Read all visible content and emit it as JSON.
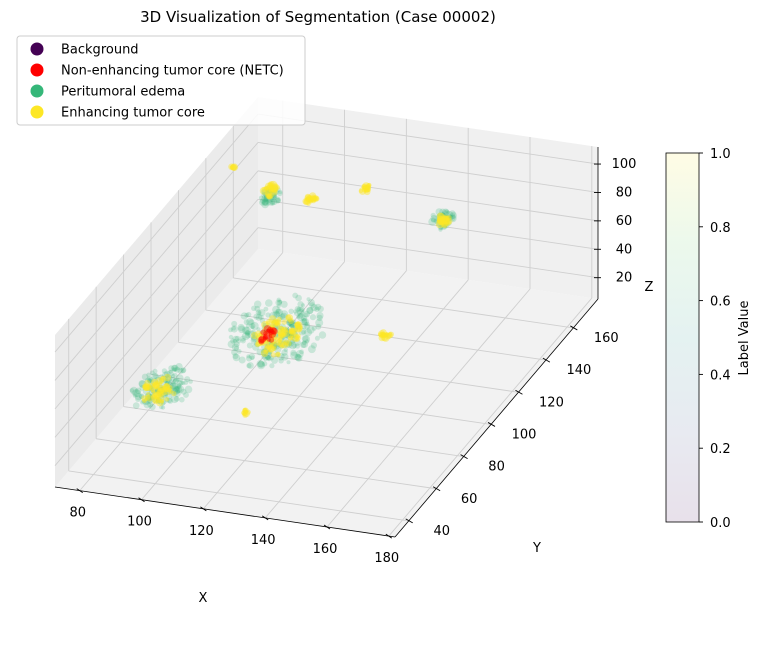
{
  "chart_data": {
    "type": "scatter",
    "projection": "3d",
    "title": "3D Visualization of Segmentation (Case 00002)",
    "xlabel": "X",
    "ylabel": "Y",
    "zlabel": "Z",
    "xlim": [
      72,
      182
    ],
    "ylim": [
      30,
      178
    ],
    "zlim": [
      5,
      112
    ],
    "x_ticks": [
      80,
      100,
      120,
      140,
      160,
      180
    ],
    "y_ticks": [
      40,
      60,
      80,
      100,
      120,
      140,
      160
    ],
    "z_ticks": [
      20,
      40,
      60,
      80,
      100
    ],
    "grid": true,
    "legend": {
      "placement": "upper-left",
      "entries": [
        {
          "label": "Background",
          "color": "#440154"
        },
        {
          "label": "Non-enhancing tumor core (NETC)",
          "color": "#ff0000"
        },
        {
          "label": "Peritumoral edema",
          "color": "#35b779"
        },
        {
          "label": "Enhancing tumor core",
          "color": "#fde725"
        }
      ]
    },
    "colorbar": {
      "label": "Label Value",
      "range": [
        0.0,
        1.0
      ],
      "ticks": [
        "0.0",
        "0.2",
        "0.4",
        "0.6",
        "0.8",
        "1.0"
      ],
      "colormap": "viridis",
      "alpha": 0.12
    },
    "clusters": [
      {
        "class": "Peritumoral edema",
        "center": [
          92,
          62,
          45
        ],
        "radius": [
          9,
          12,
          9
        ],
        "density": 140
      },
      {
        "class": "Enhancing tumor core",
        "center": [
          92,
          60,
          45
        ],
        "radius": [
          5,
          7,
          6
        ],
        "density": 60
      },
      {
        "class": "Peritumoral edema",
        "center": [
          110,
          106,
          40
        ],
        "radius": [
          14,
          18,
          16
        ],
        "density": 260
      },
      {
        "class": "Enhancing tumor core",
        "center": [
          111,
          104,
          40
        ],
        "radius": [
          7,
          9,
          9
        ],
        "density": 110
      },
      {
        "class": "Non-enhancing tumor core (NETC)",
        "center": [
          109,
          102,
          42
        ],
        "radius": [
          3,
          4,
          4
        ],
        "density": 20
      },
      {
        "class": "Peritumoral edema",
        "center": [
          93,
          140,
          92
        ],
        "radius": [
          3,
          4,
          5
        ],
        "density": 45
      },
      {
        "class": "Enhancing tumor core",
        "center": [
          93,
          140,
          96
        ],
        "radius": [
          2,
          3,
          4
        ],
        "density": 30
      },
      {
        "class": "Enhancing tumor core",
        "center": [
          104,
          145,
          87
        ],
        "radius": [
          2,
          2,
          3
        ],
        "density": 22
      },
      {
        "class": "Enhancing tumor core",
        "center": [
          116,
          158,
          84
        ],
        "radius": [
          2,
          2,
          2
        ],
        "density": 16
      },
      {
        "class": "Peritumoral edema",
        "center": [
          141,
          158,
          70
        ],
        "radius": [
          4,
          4,
          5
        ],
        "density": 45
      },
      {
        "class": "Enhancing tumor core",
        "center": [
          141,
          158,
          70
        ],
        "radius": [
          2,
          2,
          3
        ],
        "density": 25
      },
      {
        "class": "Enhancing tumor core",
        "center": [
          138,
          123,
          28
        ],
        "radius": [
          2,
          2,
          2
        ],
        "density": 18
      },
      {
        "class": "Enhancing tumor core",
        "center": [
          117,
          67,
          30
        ],
        "radius": [
          1,
          2,
          2
        ],
        "density": 10
      },
      {
        "class": "Enhancing tumor core",
        "center": [
          78,
          146,
          100
        ],
        "radius": [
          1,
          1,
          1
        ],
        "density": 6
      }
    ]
  }
}
